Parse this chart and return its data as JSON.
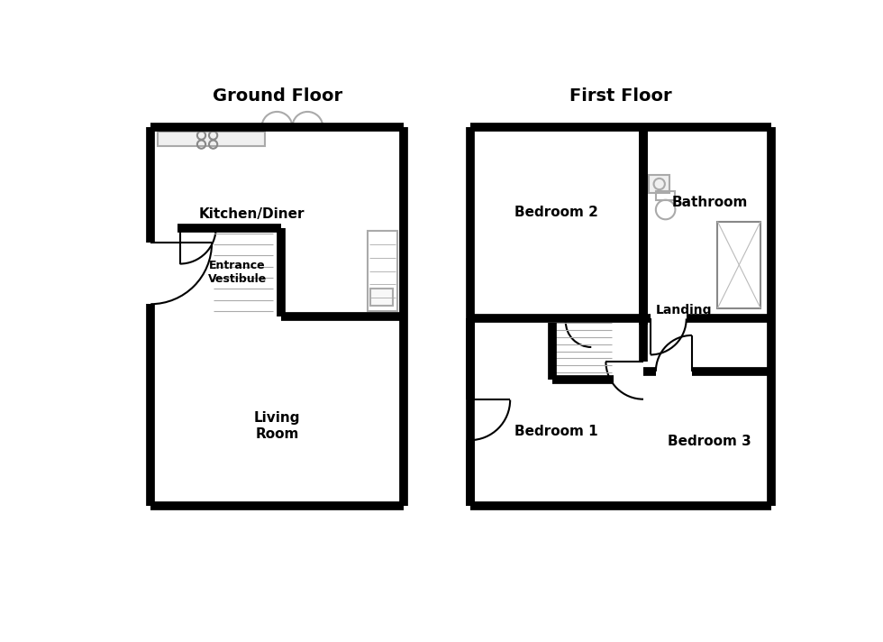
{
  "bg_color": "#ffffff",
  "wall_lw": 7,
  "thin_lw": 1.5,
  "ground_floor_title": "Ground Floor",
  "first_floor_title": "First Floor",
  "rooms": {
    "kitchen": "Kitchen/Diner",
    "entrance": "Entrance\nVestibule",
    "living": "Living\nRoom",
    "bed1": "Bedroom 1",
    "bed2": "Bedroom 2",
    "bed3": "Bedroom 3",
    "bathroom": "Bathroom",
    "landing": "Landing"
  }
}
